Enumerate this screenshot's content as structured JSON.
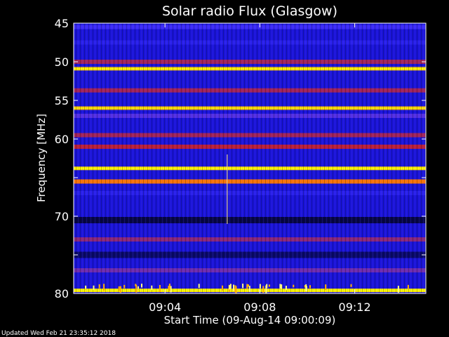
{
  "chart_data": {
    "type": "heatmap",
    "title": "Solar radio Flux (Glasgow)",
    "ylabel": "Frequency [MHz]",
    "xlabel": "Start Time (09-Aug-14 09:00:09)",
    "ylim": [
      45,
      80
    ],
    "y_ticks": [
      45,
      50,
      55,
      60,
      65,
      70,
      75,
      80
    ],
    "y_tick_labels": [
      "45",
      "50",
      "55",
      "60",
      "",
      "70",
      "",
      "80"
    ],
    "x_start": "09:00:09",
    "x_end": "09:15:00",
    "x_ticks": [
      {
        "time": "09:04",
        "label": "09:04"
      },
      {
        "time": "09:08",
        "label": "09:08"
      },
      {
        "time": "09:12",
        "label": "09:12"
      }
    ],
    "colormap": [
      "#000000",
      "#0a0a6e",
      "#1414dc",
      "#4632ff",
      "#8c2878",
      "#c81e28",
      "#ff1e00",
      "#ff8c00",
      "#ffff00"
    ],
    "bands": [
      {
        "frequency": 45.5,
        "level": 0.35
      },
      {
        "frequency": 47.5,
        "level": 0.3
      },
      {
        "frequency": 50.0,
        "level": 0.55
      },
      {
        "frequency": 50.9,
        "level": 0.95
      },
      {
        "frequency": 53.7,
        "level": 0.55
      },
      {
        "frequency": 56.0,
        "level": 0.93
      },
      {
        "frequency": 57.0,
        "level": 0.4
      },
      {
        "frequency": 59.5,
        "level": 0.55
      },
      {
        "frequency": 61.0,
        "level": 0.6
      },
      {
        "frequency": 63.8,
        "level": 0.97
      },
      {
        "frequency": 65.5,
        "level": 0.85
      },
      {
        "frequency": 67.0,
        "level": 0.3
      },
      {
        "frequency": 70.5,
        "level": 0.08
      },
      {
        "frequency": 73.0,
        "level": 0.5
      },
      {
        "frequency": 75.0,
        "level": 0.12
      },
      {
        "frequency": 77.0,
        "level": 0.45
      },
      {
        "frequency": 79.6,
        "level": 0.98
      }
    ]
  },
  "footer": {
    "updated": "Updated Wed Feb 21 23:35:12 2018"
  }
}
